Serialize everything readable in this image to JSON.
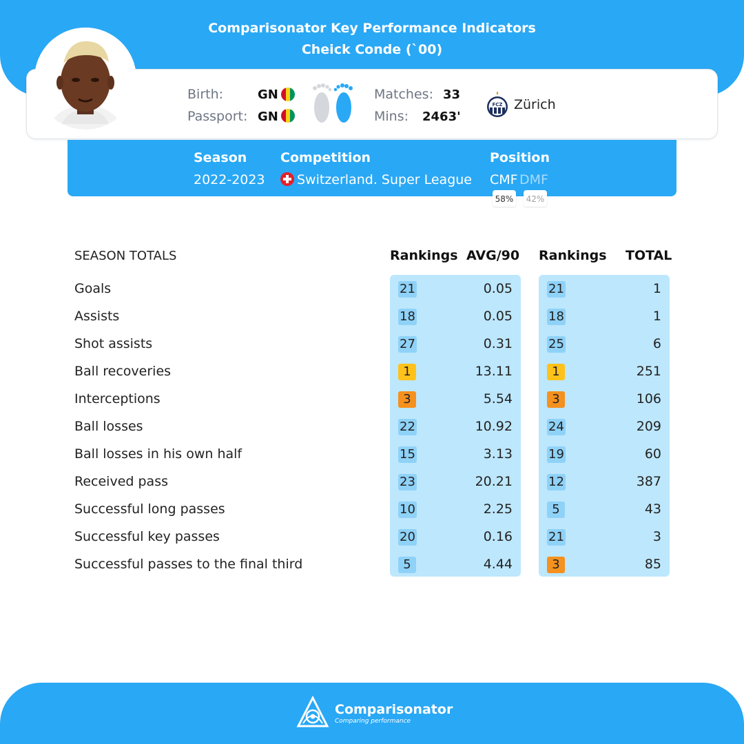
{
  "header": {
    "title_line1": "Comparisonator Key Performance Indicators",
    "title_line2": "Cheick Conde (`00)"
  },
  "player": {
    "birth_label": "Birth:",
    "birth_value": "GN",
    "passport_label": "Passport:",
    "passport_value": "GN",
    "matches_label": "Matches:",
    "matches_value": "33",
    "mins_label": "Mins:",
    "mins_value": "2463'",
    "club": "Zürich",
    "club_logo_text": "FCZ"
  },
  "season_panel": {
    "season_label": "Season",
    "season_value": "2022-2023",
    "competition_label": "Competition",
    "competition_value": "Switzerland. Super League",
    "position_label": "Position",
    "position_primary": "CMF",
    "position_secondary": "DMF",
    "position_primary_pct": "58%",
    "position_secondary_pct": "42%"
  },
  "table": {
    "section_title": "SEASON TOTALS",
    "col_rankings_avg": "Rankings",
    "col_avg": "AVG/90",
    "col_rankings_total": "Rankings",
    "col_total": "TOTAL",
    "rows": [
      {
        "label": "Goals",
        "rank_avg": "21",
        "avg": "0.05",
        "rank_total": "21",
        "total": "1"
      },
      {
        "label": "Assists",
        "rank_avg": "18",
        "avg": "0.05",
        "rank_total": "18",
        "total": "1"
      },
      {
        "label": "Shot assists",
        "rank_avg": "27",
        "avg": "0.31",
        "rank_total": "25",
        "total": "6"
      },
      {
        "label": "Ball recoveries",
        "rank_avg": "1",
        "avg": "13.11",
        "rank_total": "1",
        "total": "251"
      },
      {
        "label": "Interceptions",
        "rank_avg": "3",
        "avg": "5.54",
        "rank_total": "3",
        "total": "106"
      },
      {
        "label": "Ball losses",
        "rank_avg": "22",
        "avg": "10.92",
        "rank_total": "24",
        "total": "209"
      },
      {
        "label": "Ball losses in his own half",
        "rank_avg": "15",
        "avg": "3.13",
        "rank_total": "19",
        "total": "60"
      },
      {
        "label": "Received pass",
        "rank_avg": "23",
        "avg": "20.21",
        "rank_total": "12",
        "total": "387"
      },
      {
        "label": "Successful long passes",
        "rank_avg": "10",
        "avg": "2.25",
        "rank_total": "5",
        "total": "43"
      },
      {
        "label": "Successful key passes",
        "rank_avg": "20",
        "avg": "0.16",
        "rank_total": "21",
        "total": "3"
      },
      {
        "label": "Successful passes to the final third",
        "rank_avg": "5",
        "avg": "4.44",
        "rank_total": "3",
        "total": "85"
      }
    ]
  },
  "footer": {
    "brand": "Comparisonator",
    "tagline": "Comparing performance"
  },
  "colors": {
    "brand_blue": "#29a8f5",
    "panel_light_blue": "#bde7fd",
    "rank_normal": "#8fd2f8",
    "rank_first": "#ffc21a",
    "rank_top3": "#f5911e"
  },
  "icons": [
    "player-photo",
    "guinea-flag-icon",
    "feet-icon",
    "fcz-club-logo",
    "switzerland-flag-icon",
    "comparisonator-logo"
  ]
}
